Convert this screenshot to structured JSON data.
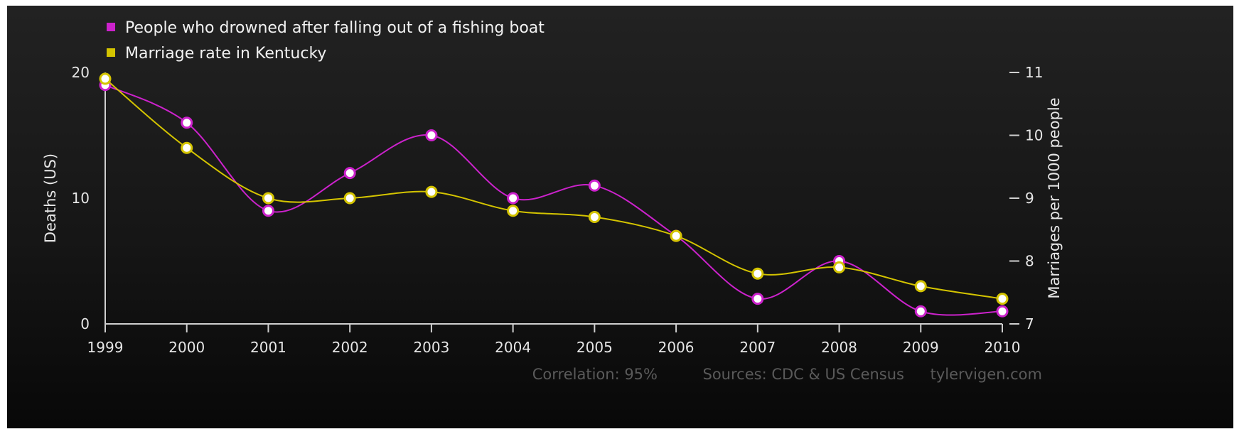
{
  "chart_data": {
    "type": "line",
    "title": "",
    "x": [
      "1999",
      "2000",
      "2001",
      "2002",
      "2003",
      "2004",
      "2005",
      "2006",
      "2007",
      "2008",
      "2009",
      "2010"
    ],
    "series": [
      {
        "name": "People who drowned after falling out of a fishing boat",
        "axis": "left",
        "color": "#cc22cc",
        "values": [
          19,
          16,
          9,
          12,
          15,
          10,
          11,
          7,
          2,
          5,
          1,
          1
        ]
      },
      {
        "name": "Marriage rate in Kentucky",
        "axis": "right",
        "color": "#d4c400",
        "values": [
          10.9,
          9.8,
          9.0,
          9.0,
          9.1,
          8.8,
          8.7,
          8.4,
          7.8,
          7.9,
          7.6,
          7.4
        ]
      }
    ],
    "ylabel_left": "Deaths (US)",
    "ylabel_right": "Marriages per 1000 people",
    "ylim_left": [
      0,
      20
    ],
    "ylim_right": [
      7,
      11
    ],
    "yticks_left": [
      "0",
      "10",
      "20"
    ],
    "yticks_right": [
      "7",
      "8",
      "9",
      "10",
      "11"
    ],
    "legend_position": "top-left",
    "grid": false,
    "footer": {
      "correlation": "Correlation: 95%",
      "sources": "Sources: CDC & US Census",
      "site": "tylervigen.com"
    }
  }
}
